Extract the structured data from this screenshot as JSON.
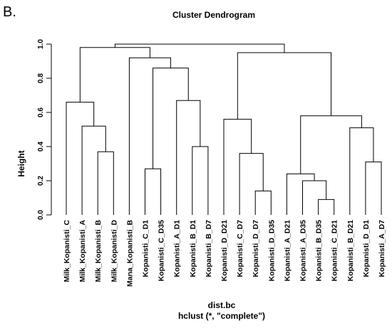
{
  "panel_label": "B.",
  "chart_data": {
    "type": "dendrogram",
    "title": "Cluster Dendrogram",
    "ylabel": "Height",
    "xlabel": "dist.bc",
    "sublabel": "hclust (*, \"complete\")",
    "ylim": [
      0,
      1.0
    ],
    "yticks": [
      "0.0",
      "0.2",
      "0.4",
      "0.6",
      "0.8",
      "1.0"
    ],
    "leaves": [
      "Milk_Kopanisti_C",
      "Milk_Kopanisti_A",
      "Milk_Kopanisti_B",
      "Milk_Kopanisti_D",
      "Mana_Kopanisti_B",
      "Kopanisti_C_D1",
      "Kopanisti_C_D35",
      "Kopanisti_A_D1",
      "Kopanisti_B_D1",
      "Kopanisti_B_D7",
      "Kopanisti_D_D21",
      "Kopanisti_C_D7",
      "Kopanisti_D_D7",
      "Kopanisti_D_D35",
      "Kopanisti_A_D21",
      "Kopanisti_A_D35",
      "Kopanisti_B_D35",
      "Kopanisti_C_D21",
      "Kopanisti_B_D21",
      "Kopanisti_D_D1",
      "Kopanisti_A_D7"
    ],
    "merges": [
      [
        -3,
        -4,
        0.37
      ],
      [
        -2,
        1,
        0.52
      ],
      [
        -1,
        2,
        0.66
      ],
      [
        -6,
        -7,
        0.27
      ],
      [
        -9,
        -10,
        0.4
      ],
      [
        -8,
        5,
        0.67
      ],
      [
        4,
        6,
        0.86
      ],
      [
        -5,
        7,
        0.92
      ],
      [
        3,
        8,
        0.98
      ],
      [
        -13,
        -14,
        0.14
      ],
      [
        -12,
        10,
        0.36
      ],
      [
        -11,
        11,
        0.56
      ],
      [
        -17,
        -18,
        0.09
      ],
      [
        -16,
        13,
        0.2
      ],
      [
        -15,
        14,
        0.24
      ],
      [
        -20,
        -21,
        0.31
      ],
      [
        -19,
        16,
        0.51
      ],
      [
        15,
        17,
        0.58
      ],
      [
        12,
        18,
        0.95
      ],
      [
        9,
        19,
        1.0
      ]
    ]
  }
}
